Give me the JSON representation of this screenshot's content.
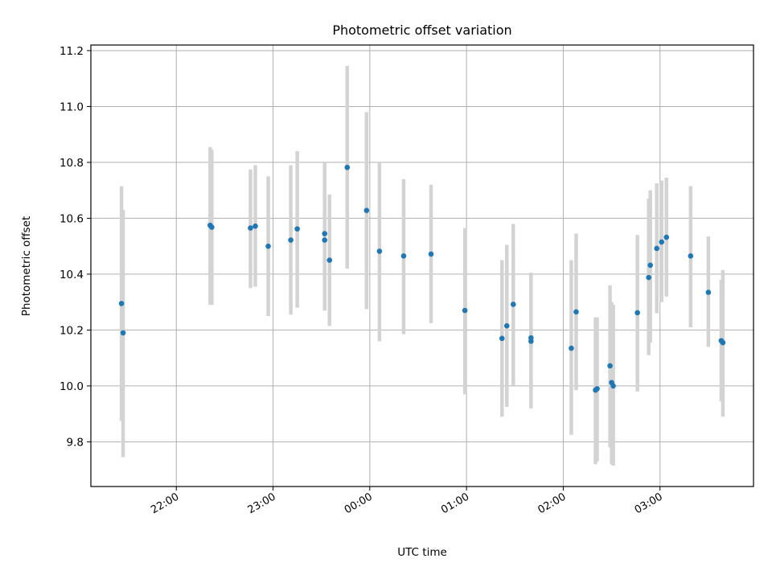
{
  "chart_data": {
    "type": "scatter",
    "title": "Photometric offset variation",
    "xlabel": "UTC time",
    "ylabel": "Photometric offset",
    "x_tick_labels": [
      "22:00",
      "23:00",
      "00:00",
      "01:00",
      "02:00",
      "03:00"
    ],
    "x_ticks": [
      "22:00",
      "23:00",
      "24:00",
      "25:00",
      "26:00",
      "27:00"
    ],
    "xlim": [
      "21:07",
      "27:58"
    ],
    "y_ticks": [
      9.8,
      10.0,
      10.2,
      10.4,
      10.6,
      10.8,
      11.0,
      11.2
    ],
    "y_tick_labels": [
      "9.8",
      "10.0",
      "10.2",
      "10.4",
      "10.6",
      "10.8",
      "11.0",
      "11.2"
    ],
    "ylim": [
      9.64,
      11.22
    ],
    "grid": true,
    "colors": {
      "points": "#1f77b4",
      "error_bars": "#d3d3d3",
      "grid": "#b0b0b0"
    },
    "series": [
      {
        "points": [
          {
            "t": "21:26",
            "y": 10.295,
            "lo": 9.875,
            "hi": 10.715
          },
          {
            "t": "21:27",
            "y": 10.19,
            "lo": 9.745,
            "hi": 10.63
          },
          {
            "t": "22:21",
            "y": 10.575,
            "lo": 10.29,
            "hi": 10.855
          },
          {
            "t": "22:22",
            "y": 10.568,
            "lo": 10.29,
            "hi": 10.845
          },
          {
            "t": "22:46",
            "y": 10.565,
            "lo": 10.35,
            "hi": 10.775
          },
          {
            "t": "22:49",
            "y": 10.572,
            "lo": 10.355,
            "hi": 10.79
          },
          {
            "t": "22:57",
            "y": 10.5,
            "lo": 10.25,
            "hi": 10.75
          },
          {
            "t": "23:11",
            "y": 10.522,
            "lo": 10.255,
            "hi": 10.79
          },
          {
            "t": "23:15",
            "y": 10.562,
            "lo": 10.28,
            "hi": 10.84
          },
          {
            "t": "23:32",
            "y": 10.545,
            "lo": 10.27,
            "hi": 10.8
          },
          {
            "t": "23:32",
            "y": 10.522,
            "lo": 10.27,
            "hi": 10.78
          },
          {
            "t": "23:35",
            "y": 10.45,
            "lo": 10.215,
            "hi": 10.685
          },
          {
            "t": "23:46",
            "y": 10.782,
            "lo": 10.42,
            "hi": 11.145
          },
          {
            "t": "23:58",
            "y": 10.628,
            "lo": 10.275,
            "hi": 10.98
          },
          {
            "t": "24:06",
            "y": 10.482,
            "lo": 10.16,
            "hi": 10.8
          },
          {
            "t": "24:21",
            "y": 10.465,
            "lo": 10.185,
            "hi": 10.74
          },
          {
            "t": "24:38",
            "y": 10.472,
            "lo": 10.225,
            "hi": 10.72
          },
          {
            "t": "24:59",
            "y": 10.27,
            "lo": 9.97,
            "hi": 10.565
          },
          {
            "t": "25:22",
            "y": 10.17,
            "lo": 9.89,
            "hi": 10.45
          },
          {
            "t": "25:25",
            "y": 10.215,
            "lo": 9.925,
            "hi": 10.505
          },
          {
            "t": "25:29",
            "y": 10.292,
            "lo": 10.0,
            "hi": 10.58
          },
          {
            "t": "25:40",
            "y": 10.172,
            "lo": 9.93,
            "hi": 10.405
          },
          {
            "t": "25:40",
            "y": 10.16,
            "lo": 9.92,
            "hi": 10.4
          },
          {
            "t": "26:05",
            "y": 10.135,
            "lo": 9.825,
            "hi": 10.45
          },
          {
            "t": "26:08",
            "y": 10.265,
            "lo": 9.985,
            "hi": 10.545
          },
          {
            "t": "26:20",
            "y": 9.985,
            "lo": 9.72,
            "hi": 10.245
          },
          {
            "t": "26:21",
            "y": 9.99,
            "lo": 9.73,
            "hi": 10.245
          },
          {
            "t": "26:29",
            "y": 10.072,
            "lo": 9.78,
            "hi": 10.36
          },
          {
            "t": "26:30",
            "y": 10.012,
            "lo": 9.72,
            "hi": 10.3
          },
          {
            "t": "26:31",
            "y": 10.0,
            "lo": 9.715,
            "hi": 10.29
          },
          {
            "t": "26:46",
            "y": 10.262,
            "lo": 9.98,
            "hi": 10.54
          },
          {
            "t": "26:53",
            "y": 10.388,
            "lo": 10.11,
            "hi": 10.67
          },
          {
            "t": "26:54",
            "y": 10.432,
            "lo": 10.155,
            "hi": 10.7
          },
          {
            "t": "26:58",
            "y": 10.492,
            "lo": 10.26,
            "hi": 10.725
          },
          {
            "t": "27:01",
            "y": 10.515,
            "lo": 10.3,
            "hi": 10.735
          },
          {
            "t": "27:04",
            "y": 10.532,
            "lo": 10.32,
            "hi": 10.745
          },
          {
            "t": "27:19",
            "y": 10.465,
            "lo": 10.21,
            "hi": 10.715
          },
          {
            "t": "27:30",
            "y": 10.335,
            "lo": 10.14,
            "hi": 10.535
          },
          {
            "t": "27:38",
            "y": 10.162,
            "lo": 9.945,
            "hi": 10.38
          },
          {
            "t": "27:39",
            "y": 10.155,
            "lo": 9.89,
            "hi": 10.415
          }
        ]
      }
    ]
  }
}
